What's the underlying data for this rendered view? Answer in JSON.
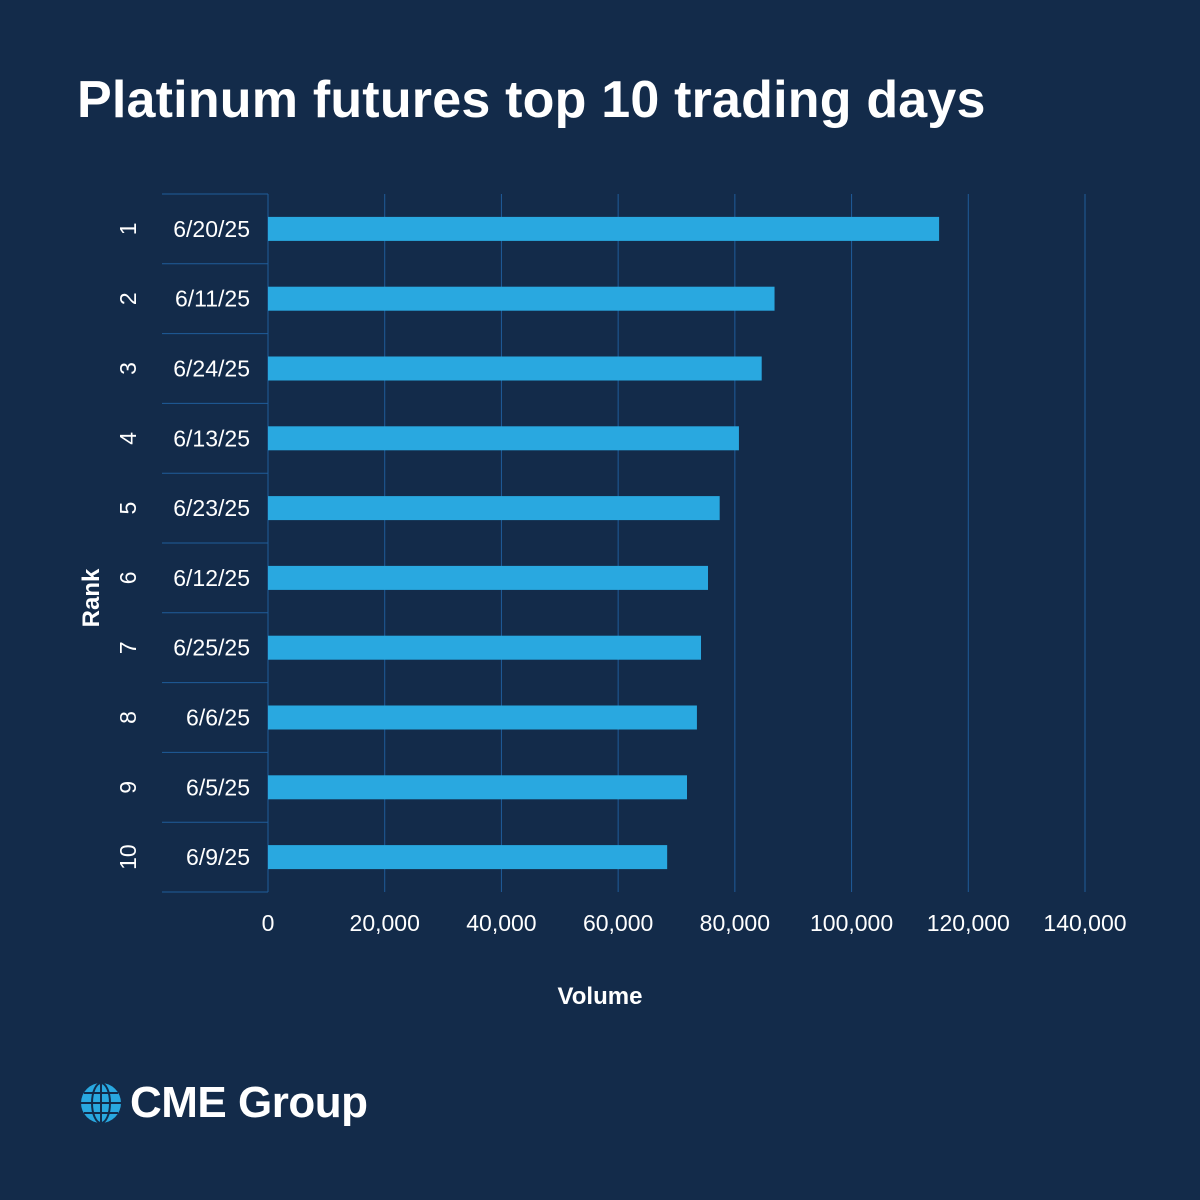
{
  "chart_data": {
    "type": "bar",
    "orientation": "horizontal",
    "title": "Platinum futures top 10 trading days",
    "xlabel": "Volume",
    "ylabel": "Rank",
    "ranks": [
      "1",
      "2",
      "3",
      "4",
      "5",
      "6",
      "7",
      "8",
      "9",
      "10"
    ],
    "categories": [
      "6/20/25",
      "6/11/25",
      "6/24/25",
      "6/13/25",
      "6/23/25",
      "6/12/25",
      "6/25/25",
      "6/6/25",
      "6/5/25",
      "6/9/25"
    ],
    "values": [
      115000,
      86800,
      84600,
      80700,
      77400,
      75400,
      74200,
      73500,
      71800,
      68400
    ],
    "xlim": [
      0,
      140000
    ],
    "xticks": [
      0,
      20000,
      40000,
      60000,
      80000,
      100000,
      120000,
      140000
    ],
    "xtick_labels": [
      "0",
      "20,000",
      "40,000",
      "60,000",
      "80,000",
      "100,000",
      "120,000",
      "140,000"
    ],
    "grid": true,
    "colors": {
      "bar": "#29a8e0",
      "background": "#132b4a",
      "gridline": "#1f5c9a"
    }
  },
  "brand": {
    "name": "CME Group",
    "logo_icon": "globe-icon"
  }
}
